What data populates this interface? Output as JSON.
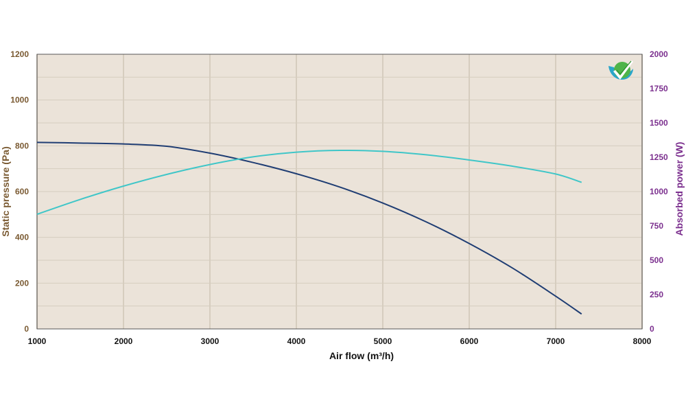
{
  "chart_data": {
    "type": "line",
    "title": "",
    "xlabel": "Air flow (m³/h)",
    "ylabel_left": "Static pressure  (Pa)",
    "ylabel_right": "Absorbed power (W)",
    "xlim": [
      1000,
      8000
    ],
    "ylim_left": [
      0,
      1200
    ],
    "ylim_right": [
      0,
      2000
    ],
    "x_ticks": [
      1000,
      2000,
      3000,
      4000,
      5000,
      6000,
      7000,
      8000
    ],
    "y_left_ticks": [
      0,
      200,
      400,
      600,
      800,
      1000,
      1200
    ],
    "y_right_ticks": [
      0,
      250,
      500,
      750,
      1000,
      1250,
      1500,
      1750,
      2000
    ],
    "grid": true,
    "colors": {
      "plot_bg": "#ebe3d9",
      "grid": "#d6cdbf",
      "left_axis_text": "#7a5a32",
      "right_axis_text": "#7b2f8e",
      "x_axis_text": "#111111",
      "pressure": "#1f3d73",
      "power": "#3fc6c8"
    },
    "series": [
      {
        "axis": "left",
        "color": "#1f3d73",
        "x": [
          1000,
          1500,
          2000,
          2500,
          3000,
          3500,
          4000,
          4500,
          5000,
          5500,
          6000,
          6500,
          7000,
          7300
        ],
        "y": [
          815,
          812,
          808,
          798,
          768,
          727,
          678,
          620,
          550,
          468,
          373,
          266,
          143,
          65
        ]
      },
      {
        "axis": "right",
        "color": "#3fc6c8",
        "x": [
          1000,
          1500,
          2000,
          2500,
          3000,
          3500,
          4000,
          4500,
          5000,
          5500,
          6000,
          6500,
          7000,
          7300
        ],
        "y": [
          835,
          943,
          1040,
          1125,
          1197,
          1253,
          1287,
          1300,
          1293,
          1268,
          1230,
          1185,
          1128,
          1067
        ]
      }
    ]
  },
  "logo": {
    "icon": "checkmark-logo-icon"
  }
}
